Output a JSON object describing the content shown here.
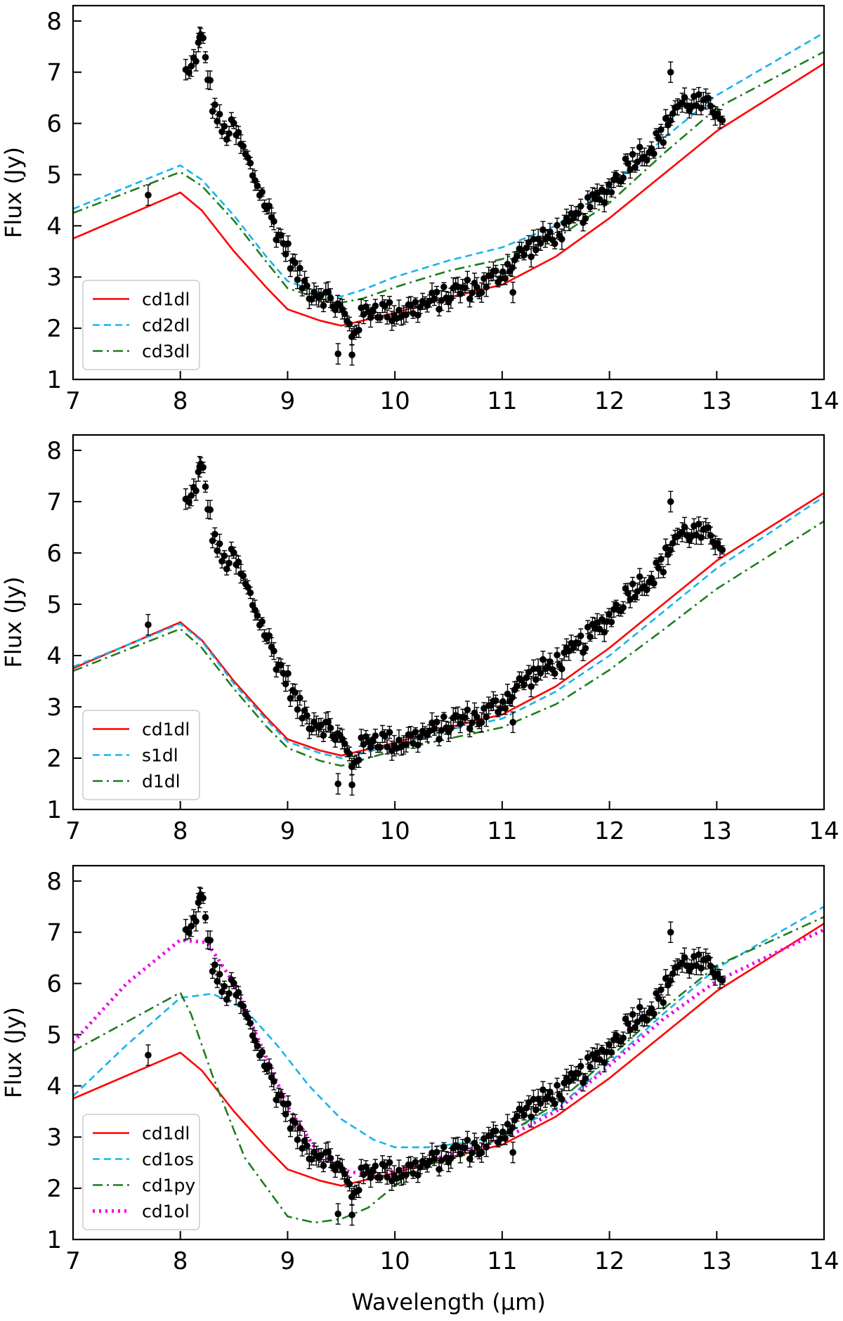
{
  "chart_data": [
    {
      "type": "line",
      "panel": "top",
      "xlabel": "",
      "ylabel": "Flux (Jy)",
      "xlim": [
        7,
        14
      ],
      "ylim": [
        1,
        8.3
      ],
      "xticks": [
        7,
        8,
        9,
        10,
        11,
        12,
        13,
        14
      ],
      "yticks": [
        1,
        2,
        3,
        4,
        5,
        6,
        7,
        8
      ],
      "legend_position": "lower-left",
      "series": [
        {
          "name": "cd1dl",
          "color": "#ff0000",
          "style": "solid",
          "x": [
            7,
            8,
            8.2,
            8.5,
            8.8,
            9,
            9.3,
            9.5,
            10,
            10.5,
            11,
            11.5,
            12,
            12.5,
            13,
            14
          ],
          "y": [
            3.75,
            4.65,
            4.3,
            3.5,
            2.8,
            2.37,
            2.15,
            2.05,
            2.3,
            2.6,
            2.85,
            3.4,
            4.15,
            5.0,
            5.85,
            7.17
          ]
        },
        {
          "name": "cd2dl",
          "color": "#16b5ea",
          "style": "dashed",
          "x": [
            7,
            8,
            8.2,
            8.5,
            8.8,
            9,
            9.3,
            9.5,
            9.7,
            10,
            10.5,
            11,
            11.5,
            12,
            12.5,
            13,
            14
          ],
          "y": [
            4.33,
            5.18,
            4.9,
            4.2,
            3.4,
            2.92,
            2.7,
            2.62,
            2.75,
            3.0,
            3.32,
            3.58,
            4.0,
            4.75,
            5.7,
            6.55,
            7.77
          ]
        },
        {
          "name": "cd3dl",
          "color": "#1e7d1e",
          "style": "dashdot",
          "x": [
            7,
            8,
            8.2,
            8.5,
            8.8,
            9,
            9.3,
            9.5,
            9.7,
            10,
            10.5,
            11,
            11.5,
            12,
            12.5,
            13,
            14
          ],
          "y": [
            4.25,
            5.05,
            4.78,
            4.1,
            3.3,
            2.78,
            2.58,
            2.5,
            2.58,
            2.8,
            3.12,
            3.35,
            3.75,
            4.45,
            5.4,
            6.3,
            7.4
          ]
        }
      ]
    },
    {
      "type": "line",
      "panel": "middle",
      "xlabel": "",
      "ylabel": "Flux (Jy)",
      "xlim": [
        7,
        14
      ],
      "ylim": [
        1,
        8.3
      ],
      "xticks": [
        7,
        8,
        9,
        10,
        11,
        12,
        13,
        14
      ],
      "yticks": [
        1,
        2,
        3,
        4,
        5,
        6,
        7,
        8
      ],
      "legend_position": "lower-left",
      "series": [
        {
          "name": "cd1dl",
          "color": "#ff0000",
          "style": "solid",
          "x": [
            7,
            8,
            8.2,
            8.5,
            8.8,
            9,
            9.3,
            9.5,
            10,
            10.5,
            11,
            11.5,
            12,
            12.5,
            13,
            14
          ],
          "y": [
            3.75,
            4.65,
            4.3,
            3.5,
            2.8,
            2.37,
            2.15,
            2.05,
            2.3,
            2.6,
            2.85,
            3.4,
            4.15,
            5.0,
            5.85,
            7.17
          ]
        },
        {
          "name": "s1dl",
          "color": "#16b5ea",
          "style": "dashed",
          "x": [
            7,
            8,
            8.2,
            8.5,
            8.8,
            9,
            9.3,
            9.5,
            10,
            10.5,
            11,
            11.5,
            12,
            12.5,
            13,
            14
          ],
          "y": [
            3.78,
            4.62,
            4.28,
            3.45,
            2.75,
            2.32,
            2.1,
            2.0,
            2.25,
            2.55,
            2.77,
            3.3,
            4.0,
            4.85,
            5.7,
            7.1
          ]
        },
        {
          "name": "d1dl",
          "color": "#1e7d1e",
          "style": "dashdot",
          "x": [
            7,
            8,
            8.2,
            8.5,
            8.8,
            9,
            9.3,
            9.5,
            10,
            10.5,
            11,
            11.5,
            12,
            12.5,
            13,
            14
          ],
          "y": [
            3.7,
            4.52,
            4.15,
            3.35,
            2.62,
            2.2,
            1.95,
            1.85,
            2.15,
            2.38,
            2.6,
            3.05,
            3.72,
            4.5,
            5.3,
            6.62
          ]
        }
      ]
    },
    {
      "type": "line",
      "panel": "bottom",
      "xlabel": "Wavelength (μm)",
      "ylabel": "Flux (Jy)",
      "xlim": [
        7,
        14
      ],
      "ylim": [
        1,
        8.3
      ],
      "xticks": [
        7,
        8,
        9,
        10,
        11,
        12,
        13,
        14
      ],
      "yticks": [
        1,
        2,
        3,
        4,
        5,
        6,
        7,
        8
      ],
      "legend_position": "lower-left",
      "series": [
        {
          "name": "cd1dl",
          "color": "#ff0000",
          "style": "solid",
          "x": [
            7,
            8,
            8.2,
            8.5,
            8.8,
            9,
            9.3,
            9.5,
            10,
            10.5,
            11,
            11.5,
            12,
            12.5,
            13,
            14
          ],
          "y": [
            3.75,
            4.65,
            4.3,
            3.5,
            2.8,
            2.37,
            2.15,
            2.05,
            2.3,
            2.6,
            2.85,
            3.4,
            4.15,
            5.0,
            5.85,
            7.17
          ]
        },
        {
          "name": "cd1os",
          "color": "#16b5ea",
          "style": "dashed",
          "x": [
            7,
            7.5,
            8,
            8.3,
            8.6,
            8.9,
            9.2,
            9.5,
            9.8,
            10,
            10.3,
            10.7,
            11,
            11.5,
            12,
            12.5,
            13,
            14
          ],
          "y": [
            3.8,
            4.8,
            5.72,
            5.8,
            5.5,
            4.8,
            4.0,
            3.35,
            2.95,
            2.8,
            2.8,
            2.9,
            3.05,
            3.55,
            4.45,
            5.4,
            6.3,
            7.5
          ]
        },
        {
          "name": "cd1py",
          "color": "#1e7d1e",
          "style": "dashdot",
          "x": [
            7,
            8,
            8.1,
            8.3,
            8.6,
            9,
            9.25,
            9.5,
            9.75,
            10,
            10.3,
            10.7,
            11,
            11.5,
            12,
            12.5,
            13,
            14
          ],
          "y": [
            4.68,
            5.82,
            5.4,
            4.2,
            2.6,
            1.45,
            1.33,
            1.4,
            1.62,
            2.05,
            2.45,
            2.7,
            3.0,
            3.65,
            4.55,
            5.5,
            6.35,
            7.3
          ]
        },
        {
          "name": "cd1ol",
          "color": "#ee00ee",
          "style": "dotted",
          "x": [
            7,
            7.5,
            8,
            8.25,
            8.5,
            8.75,
            9,
            9.25,
            9.5,
            9.8,
            10,
            10.5,
            11,
            11.5,
            12,
            12.5,
            13,
            14
          ],
          "y": [
            4.85,
            6.0,
            6.85,
            6.8,
            6.0,
            4.8,
            3.6,
            2.8,
            2.35,
            2.25,
            2.35,
            2.65,
            2.95,
            3.5,
            4.4,
            5.3,
            6.05,
            7.05
          ]
        }
      ]
    }
  ],
  "observed_data": {
    "name": "observed spectrum",
    "color": "#000000",
    "anchors": [
      [
        7.7,
        4.6
      ],
      [
        8.1,
        7.05
      ],
      [
        8.2,
        7.7
      ],
      [
        8.3,
        6.4
      ],
      [
        8.4,
        5.8
      ],
      [
        8.5,
        5.9
      ],
      [
        8.6,
        5.4
      ],
      [
        8.7,
        4.9
      ],
      [
        8.8,
        4.4
      ],
      [
        8.9,
        3.9
      ],
      [
        9.0,
        3.5
      ],
      [
        9.1,
        3.0
      ],
      [
        9.2,
        2.75
      ],
      [
        9.3,
        2.7
      ],
      [
        9.4,
        2.55
      ],
      [
        9.5,
        2.35
      ],
      [
        9.6,
        1.9
      ],
      [
        9.7,
        2.25
      ],
      [
        9.8,
        2.4
      ],
      [
        10.0,
        2.3
      ],
      [
        10.2,
        2.4
      ],
      [
        10.4,
        2.55
      ],
      [
        10.6,
        2.75
      ],
      [
        10.8,
        2.8
      ],
      [
        11.0,
        3.1
      ],
      [
        11.2,
        3.5
      ],
      [
        11.4,
        3.75
      ],
      [
        11.6,
        3.95
      ],
      [
        11.8,
        4.35
      ],
      [
        12.0,
        4.75
      ],
      [
        12.2,
        5.3
      ],
      [
        12.4,
        5.55
      ],
      [
        12.5,
        5.8
      ],
      [
        12.6,
        6.3
      ],
      [
        12.7,
        6.4
      ],
      [
        12.8,
        6.4
      ],
      [
        12.9,
        6.3
      ],
      [
        13.0,
        6.3
      ],
      [
        13.05,
        6.2
      ]
    ],
    "outliers": [
      [
        7.7,
        4.6
      ],
      [
        9.47,
        1.5
      ],
      [
        9.6,
        1.48
      ],
      [
        11.1,
        2.7
      ],
      [
        8.05,
        7.05
      ],
      [
        8.18,
        7.68
      ],
      [
        12.57,
        7.0
      ]
    ]
  }
}
